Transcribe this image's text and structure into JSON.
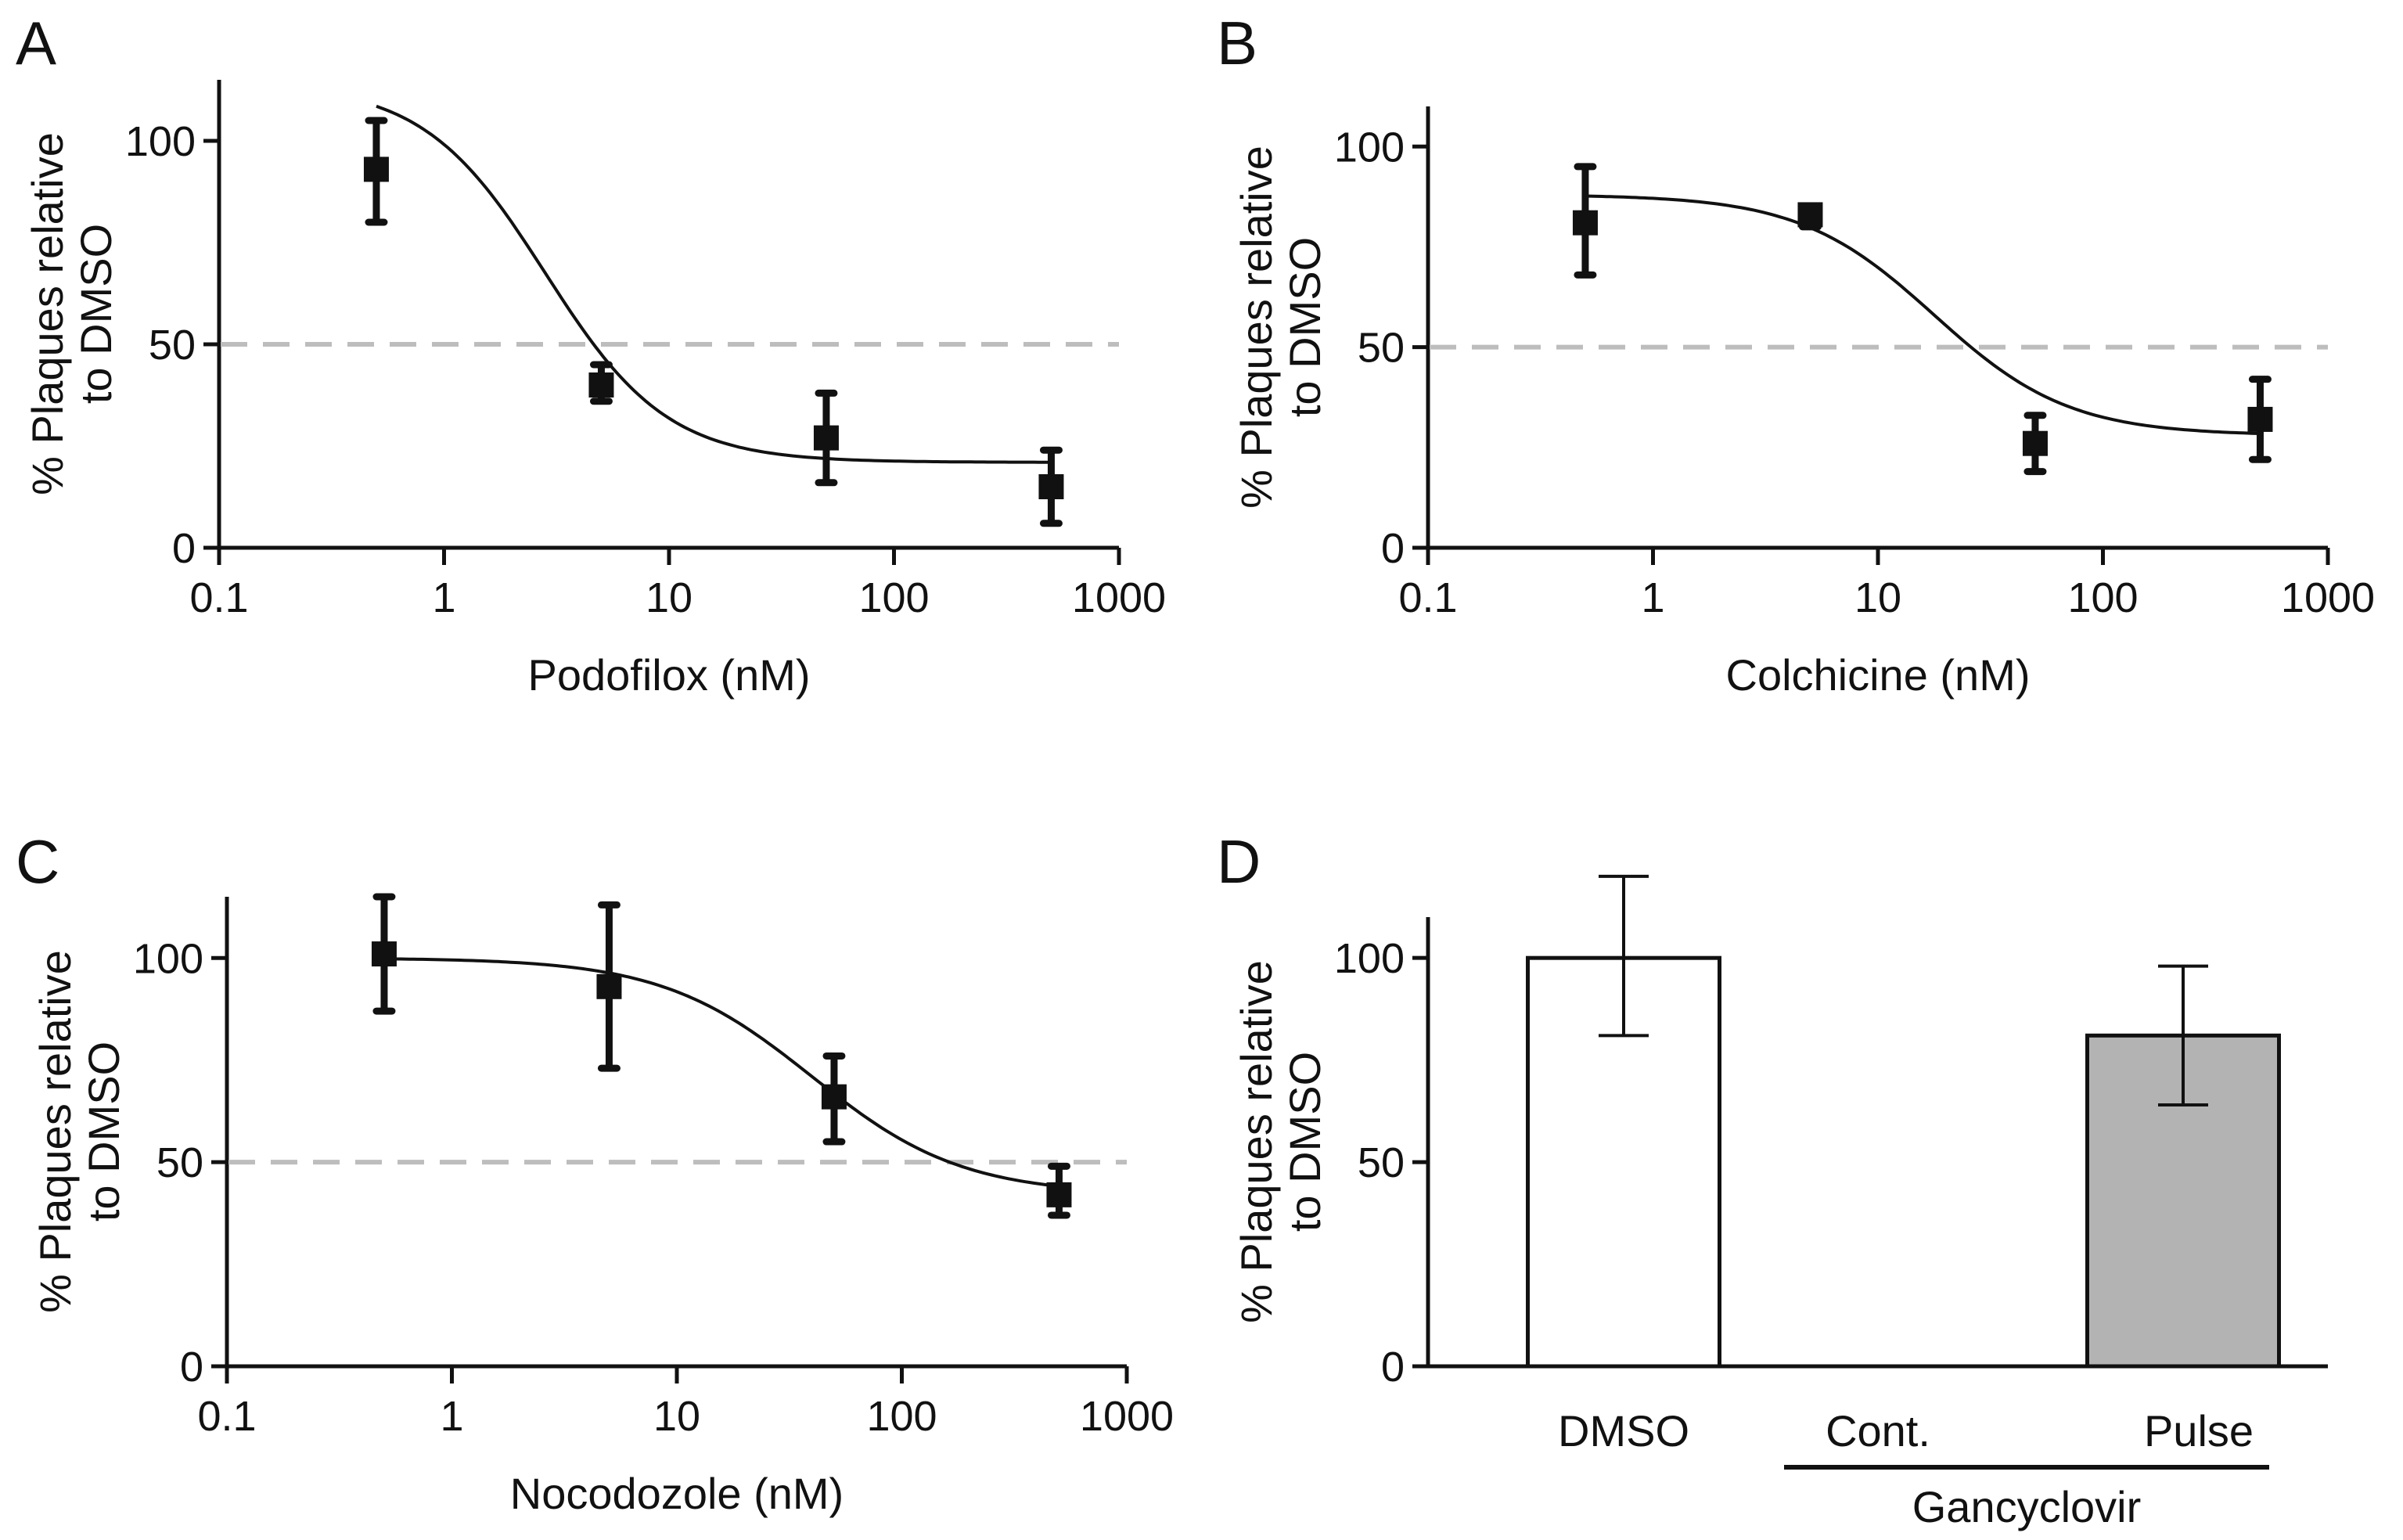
{
  "colors": {
    "ink": "#111111",
    "reference_line": "#bdbdbd",
    "bar_white": "#ffffff",
    "bar_gray": "#b3b3b3"
  },
  "chart_data": [
    {
      "panel": "A",
      "type": "scatter",
      "xscale": "log",
      "xlim": [
        0.1,
        1000
      ],
      "ylim": [
        0,
        115
      ],
      "xticks": [
        0.1,
        1,
        10,
        100,
        1000
      ],
      "xtick_labels": [
        "0.1",
        "1",
        "10",
        "100",
        "1000"
      ],
      "yticks": [
        0,
        50,
        100
      ],
      "ytick_labels": [
        "0",
        "50",
        "100"
      ],
      "xlabel": "Podofilox (nM)",
      "ylabel_line1": "% Plaques relative",
      "ylabel_line2": "to DMSO",
      "reference_y": 50,
      "x": [
        0.5,
        5,
        50,
        500
      ],
      "y": [
        93,
        40,
        27,
        15
      ],
      "err_low": [
        80,
        36,
        16,
        6
      ],
      "err_high": [
        105,
        45,
        38,
        24
      ],
      "fit": {
        "model": "four-parameter logistic",
        "bottom": 21,
        "top": 114,
        "logIC50": 0.45,
        "hill": -1.6
      }
    },
    {
      "panel": "B",
      "type": "scatter",
      "xscale": "log",
      "xlim": [
        0.1,
        1000
      ],
      "ylim": [
        0,
        110
      ],
      "xticks": [
        0.1,
        1,
        10,
        100,
        1000
      ],
      "xtick_labels": [
        "0.1",
        "1",
        "10",
        "100",
        "1000"
      ],
      "yticks": [
        0,
        50,
        100
      ],
      "ytick_labels": [
        "0",
        "50",
        "100"
      ],
      "xlabel": "Colchicine (nM)",
      "ylabel_line1": "% Plaques relative",
      "ylabel_line2": "to DMSO",
      "reference_y": 50,
      "x": [
        0.5,
        5,
        50,
        500
      ],
      "y": [
        81,
        83,
        26,
        32
      ],
      "err_low": [
        68,
        80,
        19,
        22
      ],
      "err_high": [
        95,
        85,
        33,
        42
      ],
      "fit": {
        "model": "four-parameter logistic",
        "bottom": 28,
        "top": 88,
        "logIC50": 1.25,
        "hill": -1.45
      }
    },
    {
      "panel": "C",
      "type": "scatter",
      "xscale": "log",
      "xlim": [
        0.1,
        1000
      ],
      "ylim": [
        0,
        115
      ],
      "xticks": [
        0.1,
        1,
        10,
        100,
        1000
      ],
      "xtick_labels": [
        "0.1",
        "1",
        "10",
        "100",
        "1000"
      ],
      "yticks": [
        0,
        50,
        100
      ],
      "ytick_labels": [
        "0",
        "50",
        "100"
      ],
      "xlabel": "Nocodozole (nM)",
      "ylabel_line1": "% Plaques relative",
      "ylabel_line2": "to DMSO",
      "reference_y": 50,
      "x": [
        0.5,
        5,
        50,
        500
      ],
      "y": [
        101,
        93,
        66,
        42
      ],
      "err_low": [
        87,
        73,
        55,
        37
      ],
      "err_high": [
        115,
        113,
        76,
        49
      ],
      "fit": {
        "model": "four-parameter logistic",
        "bottom": 42,
        "top": 100,
        "logIC50": 1.6,
        "hill": -1.3
      }
    },
    {
      "panel": "D",
      "type": "bar",
      "ylim": [
        0,
        110
      ],
      "yticks": [
        0,
        50,
        100
      ],
      "ytick_labels": [
        "0",
        "50",
        "100"
      ],
      "ylabel_line1": "% Plaques relative",
      "ylabel_line2": "to DMSO",
      "categories": [
        "DMSO",
        "Cont.",
        "Pulse"
      ],
      "values": [
        100,
        0,
        81
      ],
      "err_low": [
        81,
        0,
        64
      ],
      "err_high": [
        120,
        0,
        98
      ],
      "bar_colors": [
        "#ffffff",
        "#ffffff",
        "#b3b3b3"
      ],
      "group_label": "Gancyclovir",
      "group_categories": [
        "Cont.",
        "Pulse"
      ]
    }
  ]
}
